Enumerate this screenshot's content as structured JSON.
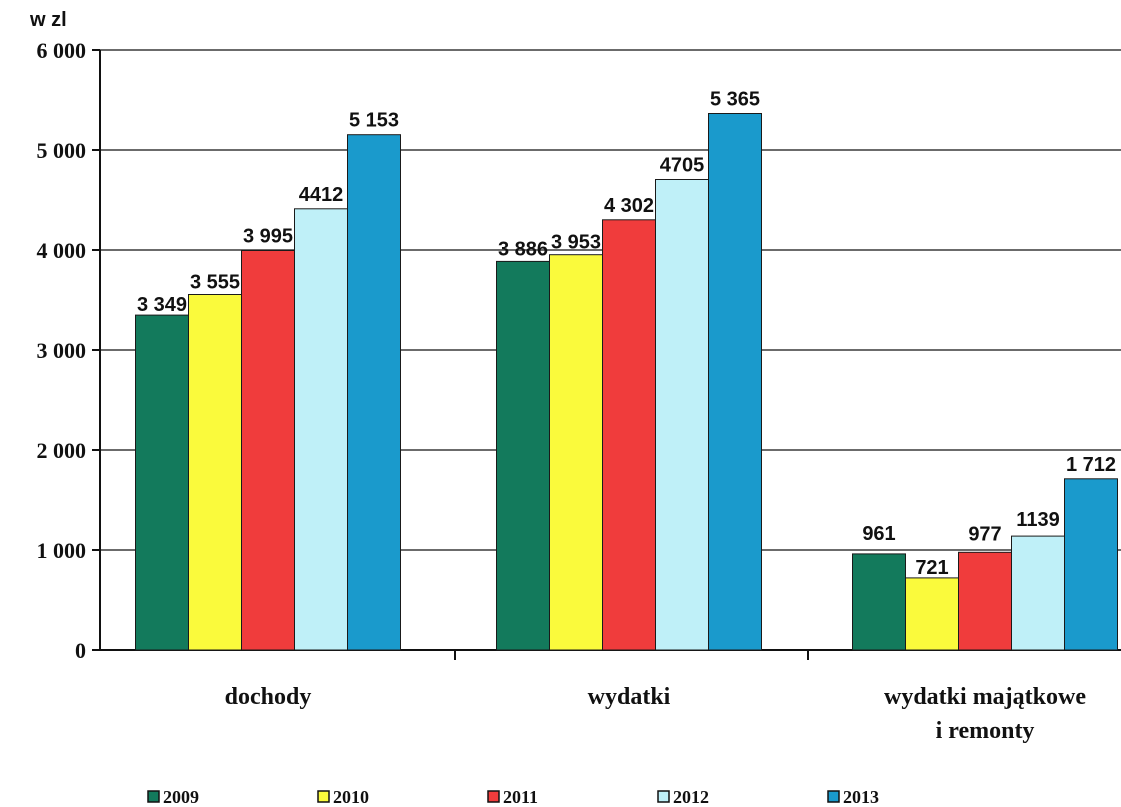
{
  "chart_data": {
    "type": "bar",
    "unit_label": "w zl",
    "categories": [
      [
        "dochody"
      ],
      [
        "wydatki"
      ],
      [
        "wydatki majątkowe",
        "i remonty"
      ]
    ],
    "series": [
      {
        "name": "2009",
        "color": "#137a5c",
        "values": [
          3349,
          3886,
          961
        ],
        "labels": [
          "3 349",
          "3 886",
          "961"
        ]
      },
      {
        "name": "2010",
        "color": "#fafa3c",
        "values": [
          3555,
          3953,
          721
        ],
        "labels": [
          "3 555",
          "3 953",
          "721"
        ]
      },
      {
        "name": "2011",
        "color": "#f03c3c",
        "values": [
          3995,
          4302,
          977
        ],
        "labels": [
          "3 995",
          "4 302",
          "977"
        ]
      },
      {
        "name": "2012",
        "color": "#bff0f8",
        "values": [
          4412,
          4705,
          1139
        ],
        "labels": [
          "4412",
          "4705",
          "1139"
        ]
      },
      {
        "name": "2013",
        "color": "#1a9acc",
        "values": [
          5153,
          5365,
          1712
        ],
        "labels": [
          "5 153",
          "5 365",
          "1 712"
        ]
      }
    ],
    "y_ticks": [
      {
        "value": 0,
        "label": "0"
      },
      {
        "value": 1000,
        "label": "1 000"
      },
      {
        "value": 2000,
        "label": "2 000"
      },
      {
        "value": 3000,
        "label": "3 000"
      },
      {
        "value": 4000,
        "label": "4 000"
      },
      {
        "value": 5000,
        "label": "5 000"
      },
      {
        "value": 6000,
        "label": "6 000"
      }
    ],
    "ylim": [
      0,
      6000
    ],
    "grid": true,
    "legend_position": "bottom"
  }
}
